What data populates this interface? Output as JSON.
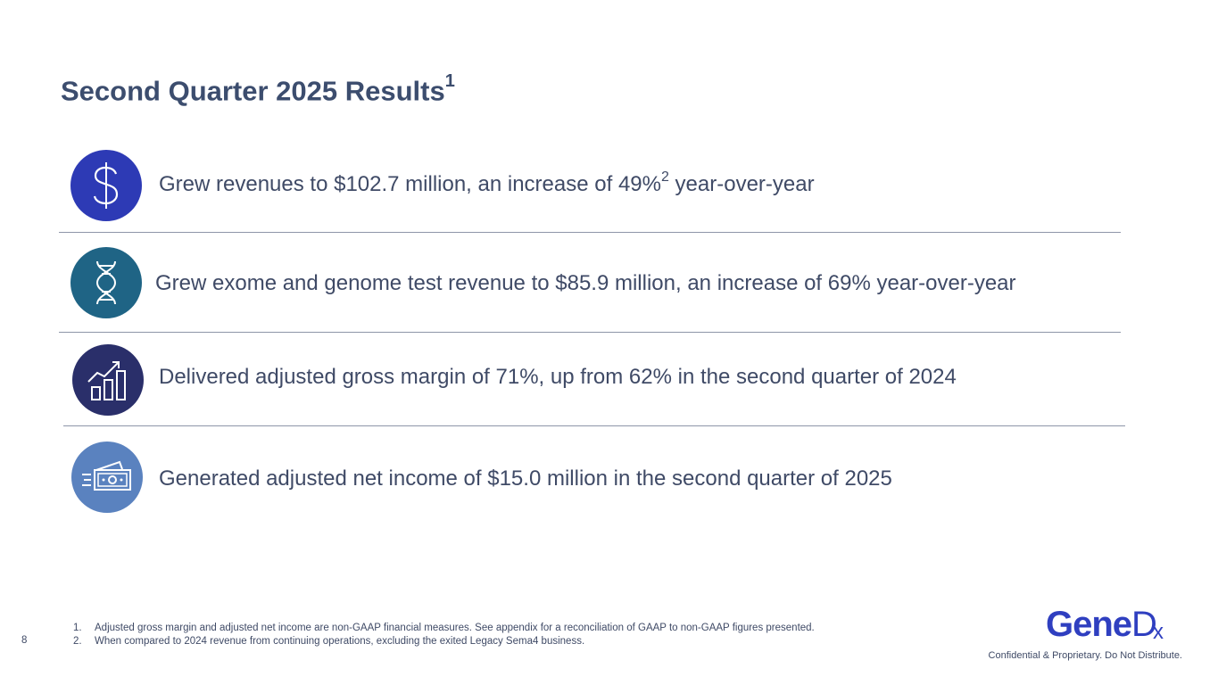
{
  "title": {
    "text": "Second Quarter 2025 Results",
    "superscript": "1"
  },
  "items": [
    {
      "icon": "dollar-sign-icon",
      "color": "#2d3ab5",
      "text_before": "Grew revenues to $102.7 million, an increase of 49%",
      "superscript": "2",
      "text_after": " year-over-year"
    },
    {
      "icon": "dna-icon",
      "color": "#1f6485",
      "text": "Grew exome and genome test revenue to $85.9 million, an increase of 69% year-over-year"
    },
    {
      "icon": "growth-chart-icon",
      "color": "#2a2f6a",
      "text": "Delivered adjusted gross margin of 71%, up from 62% in the second quarter of 2024"
    },
    {
      "icon": "money-bill-icon",
      "color": "#5a82bf",
      "text": "Generated adjusted net income of $15.0 million in the second quarter of 2025"
    }
  ],
  "footnotes": [
    {
      "number": "1.",
      "text": "Adjusted gross margin and adjusted net income are non-GAAP financial measures. See appendix for a reconciliation of GAAP to non-GAAP figures presented."
    },
    {
      "number": "2.",
      "text": "When compared to 2024 revenue from continuing operations, excluding the exited Legacy Sema4 business."
    }
  ],
  "page_number": "8",
  "logo": {
    "text_main": "Gene",
    "text_d": "D",
    "text_x": "x"
  },
  "confidential": "Confidential & Proprietary. Do Not Distribute."
}
